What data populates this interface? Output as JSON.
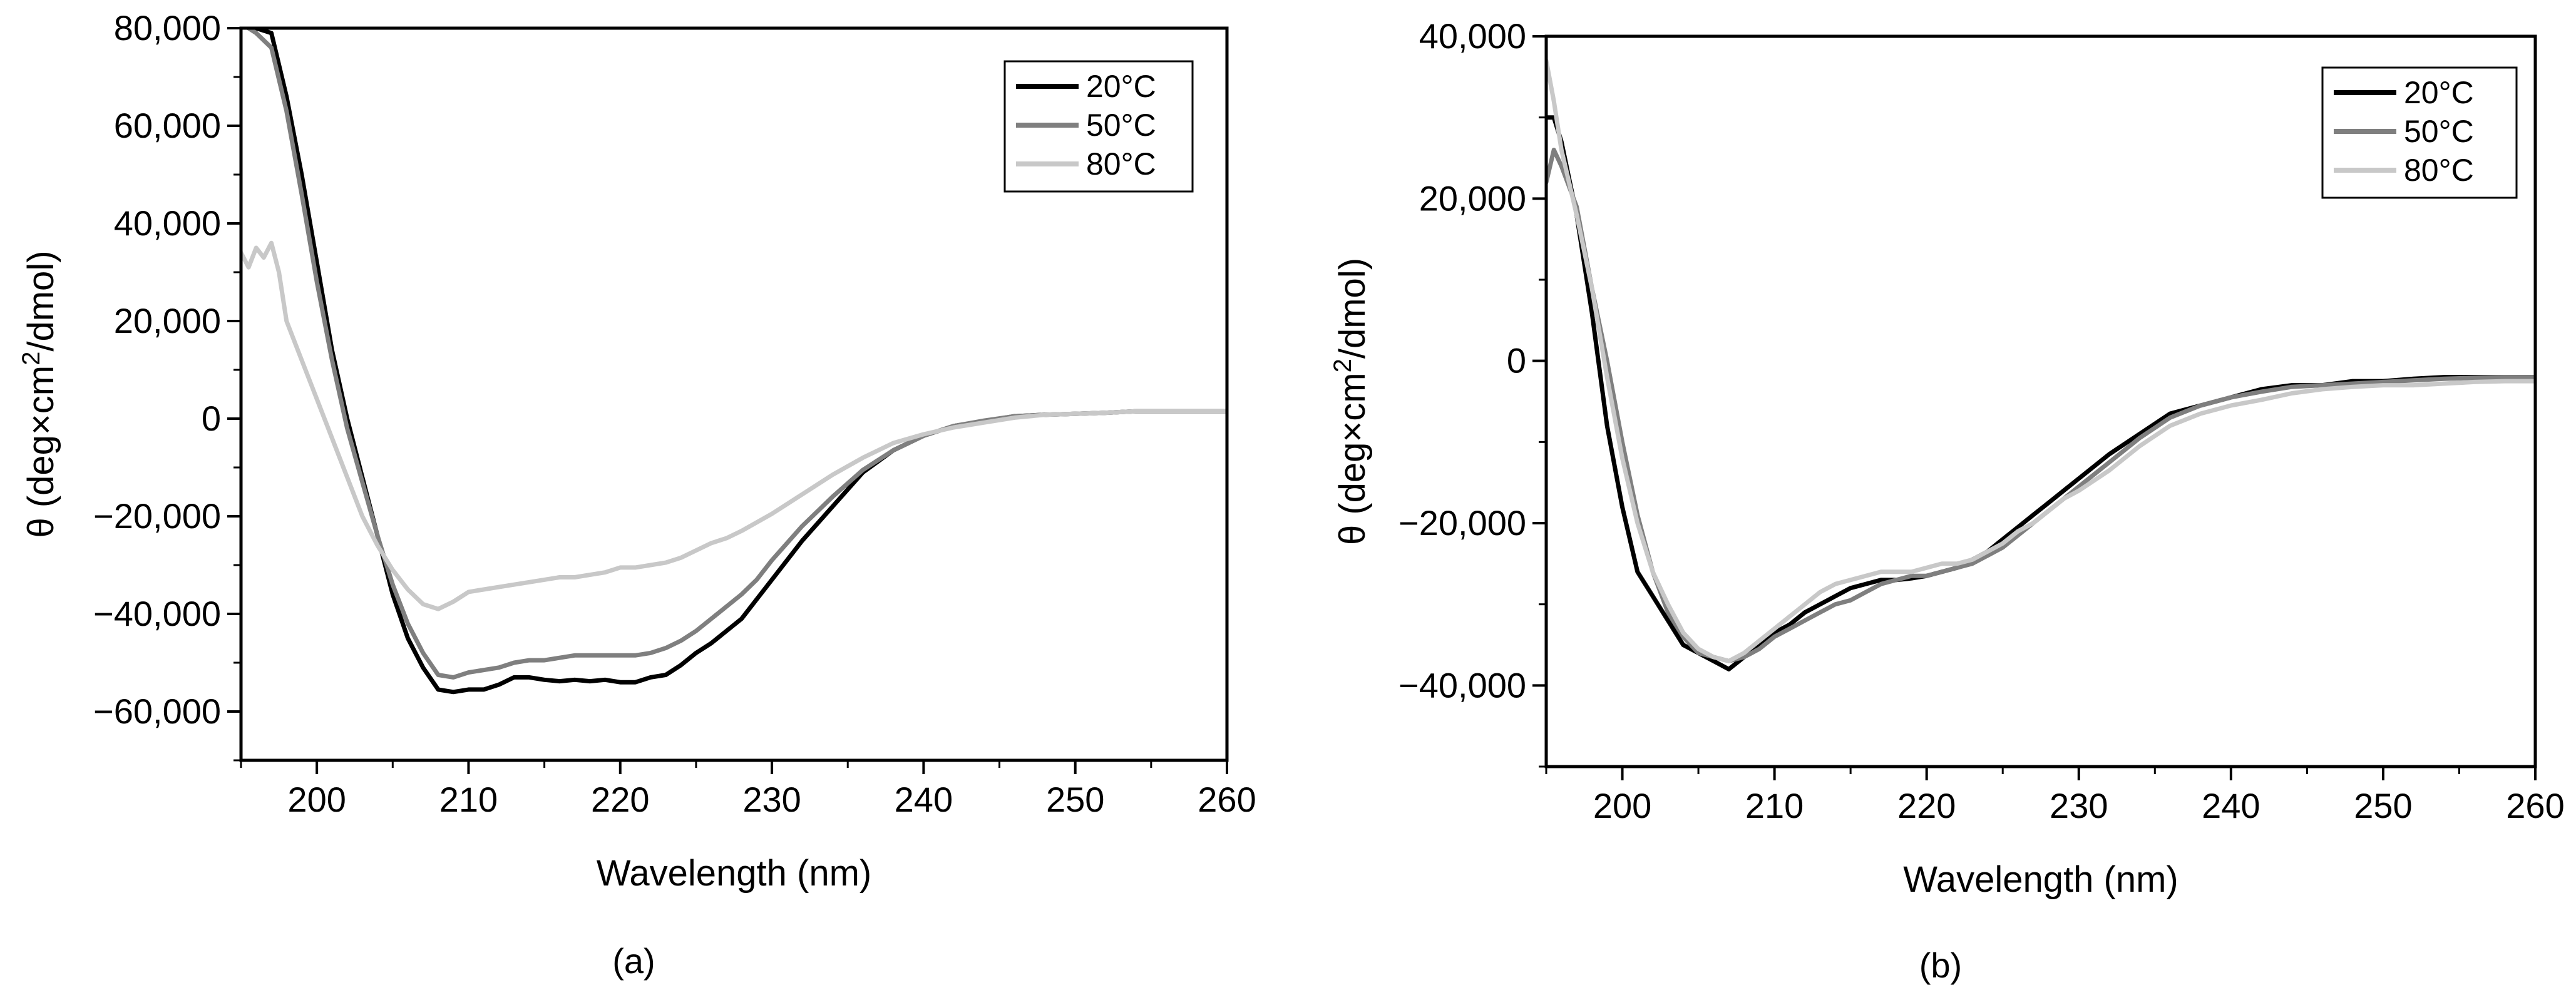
{
  "chart_data": [
    {
      "type": "line",
      "panel_label": "(a)",
      "xlabel": "Wavelength (nm)",
      "ylabel_main": "θ (deg×cm",
      "ylabel_sup": "2",
      "ylabel_tail": "/dmol)",
      "xlim": [
        195,
        260
      ],
      "ylim": [
        -70000,
        80000
      ],
      "x_ticks": [
        200,
        210,
        220,
        230,
        240,
        250,
        260
      ],
      "x_tick_labels": [
        "200",
        "210",
        "220",
        "230",
        "240",
        "250",
        "260"
      ],
      "y_ticks": [
        80000,
        60000,
        40000,
        20000,
        0,
        -20000,
        -40000,
        -60000
      ],
      "y_tick_labels": [
        "80,000",
        "60,000",
        "40,000",
        "20,000",
        "0",
        "−20,000",
        "−40,000",
        "−60,000"
      ],
      "y_minor_ticks": [
        -70000,
        -50000,
        -30000,
        -10000,
        10000,
        30000,
        50000,
        70000
      ],
      "legend": {
        "position": "top-right",
        "entries": [
          "20°C",
          "50°C",
          "80°C"
        ]
      },
      "series": [
        {
          "name": "20°C",
          "color": "#000000",
          "x": [
            195.5,
            196,
            197,
            198,
            199,
            200,
            201,
            202,
            203,
            204,
            205,
            206,
            207,
            208,
            209,
            210,
            211,
            212,
            213,
            214,
            215,
            216,
            217,
            218,
            219,
            220,
            221,
            222,
            223,
            224,
            225,
            226,
            227,
            228,
            229,
            230,
            232,
            234,
            236,
            238,
            240,
            242,
            244,
            246,
            248,
            250,
            252,
            254,
            256,
            258,
            260
          ],
          "y": [
            80000,
            80000,
            79000,
            66000,
            50000,
            32000,
            14000,
            0,
            -12000,
            -24000,
            -36000,
            -45000,
            -51000,
            -55500,
            -56000,
            -55500,
            -55500,
            -54500,
            -53000,
            -53000,
            -53500,
            -53800,
            -53500,
            -53800,
            -53500,
            -54000,
            -54000,
            -53000,
            -52500,
            -50500,
            -48000,
            -46000,
            -43500,
            -41000,
            -37000,
            -33000,
            -25000,
            -18000,
            -11000,
            -6500,
            -3500,
            -1500,
            -500,
            500,
            800,
            1000,
            1200,
            1500,
            1500,
            1500,
            1500
          ]
        },
        {
          "name": "50°C",
          "color": "#7f7f7f",
          "x": [
            195.5,
            196,
            197,
            198,
            199,
            200,
            201,
            202,
            203,
            204,
            205,
            206,
            207,
            208,
            209,
            210,
            211,
            212,
            213,
            214,
            215,
            216,
            217,
            218,
            219,
            220,
            221,
            222,
            223,
            224,
            225,
            226,
            227,
            228,
            229,
            230,
            232,
            234,
            236,
            238,
            240,
            242,
            244,
            246,
            248,
            250,
            252,
            254,
            256,
            258,
            260
          ],
          "y": [
            80000,
            79000,
            76000,
            63000,
            46000,
            28000,
            12000,
            -2000,
            -13000,
            -24000,
            -34000,
            -42000,
            -48000,
            -52500,
            -53000,
            -52000,
            -51500,
            -51000,
            -50000,
            -49500,
            -49500,
            -49000,
            -48500,
            -48500,
            -48500,
            -48500,
            -48500,
            -48000,
            -47000,
            -45500,
            -43500,
            -41000,
            -38500,
            -36000,
            -33000,
            -29000,
            -22000,
            -16000,
            -10500,
            -6500,
            -3500,
            -1500,
            -400,
            500,
            800,
            1000,
            1200,
            1500,
            1500,
            1500,
            1500
          ]
        },
        {
          "name": "80°C",
          "color": "#c8c8c8",
          "x": [
            195,
            195.5,
            196,
            196.5,
            197,
            197.5,
            198,
            199,
            200,
            201,
            202,
            203,
            204,
            205,
            206,
            207,
            208,
            209,
            210,
            211,
            212,
            213,
            214,
            215,
            216,
            217,
            218,
            219,
            220,
            221,
            222,
            223,
            224,
            225,
            226,
            227,
            228,
            230,
            232,
            234,
            236,
            238,
            240,
            242,
            244,
            246,
            248,
            250,
            252,
            254,
            256,
            258,
            260
          ],
          "y": [
            34000,
            31000,
            35000,
            33000,
            36000,
            30000,
            20000,
            12000,
            4000,
            -4000,
            -12000,
            -20000,
            -26000,
            -31000,
            -35000,
            -38000,
            -39000,
            -37500,
            -35500,
            -35000,
            -34500,
            -34000,
            -33500,
            -33000,
            -32500,
            -32500,
            -32000,
            -31500,
            -30500,
            -30500,
            -30000,
            -29500,
            -28500,
            -27000,
            -25500,
            -24500,
            -23000,
            -19500,
            -15500,
            -11500,
            -8000,
            -5000,
            -3200,
            -1800,
            -800,
            200,
            800,
            1000,
            1200,
            1500,
            1500,
            1500,
            1500
          ]
        }
      ]
    },
    {
      "type": "line",
      "panel_label": "(b)",
      "xlabel": "Wavelength (nm)",
      "ylabel_main": "θ (deg×cm",
      "ylabel_sup": "2",
      "ylabel_tail": "/dmol)",
      "xlim": [
        195,
        260
      ],
      "ylim": [
        -50000,
        40000
      ],
      "x_ticks": [
        200,
        210,
        220,
        230,
        240,
        250,
        260
      ],
      "x_tick_labels": [
        "200",
        "210",
        "220",
        "230",
        "240",
        "250",
        "260"
      ],
      "y_ticks": [
        40000,
        20000,
        0,
        -20000,
        -40000
      ],
      "y_tick_labels": [
        "40,000",
        "20,000",
        "0",
        "−20,000",
        "−40,000"
      ],
      "y_minor_ticks": [
        -50000,
        -30000,
        -10000,
        10000,
        30000
      ],
      "legend": {
        "position": "top-right",
        "entries": [
          "20°C",
          "50°C",
          "80°C"
        ]
      },
      "series": [
        {
          "name": "20°C",
          "color": "#000000",
          "x": [
            195,
            195.5,
            196,
            197,
            198,
            199,
            200,
            201,
            202,
            203,
            204,
            205,
            206,
            207,
            208,
            209,
            210,
            211,
            212,
            213,
            214,
            215,
            216,
            217,
            218,
            219,
            220,
            221,
            222,
            223,
            224,
            225,
            226,
            227,
            228,
            229,
            230,
            232,
            234,
            236,
            238,
            240,
            242,
            244,
            246,
            248,
            250,
            252,
            254,
            256,
            258,
            260
          ],
          "y": [
            30000,
            30000,
            27000,
            18000,
            6000,
            -8000,
            -18000,
            -26000,
            -29000,
            -32000,
            -35000,
            -36000,
            -37000,
            -38000,
            -36500,
            -35000,
            -33500,
            -32500,
            -31000,
            -30000,
            -29000,
            -28000,
            -27500,
            -27000,
            -27000,
            -26800,
            -26500,
            -26000,
            -25500,
            -24500,
            -23500,
            -22000,
            -20500,
            -19000,
            -17500,
            -16000,
            -14500,
            -11500,
            -9000,
            -6500,
            -5500,
            -4500,
            -3500,
            -3000,
            -3000,
            -2500,
            -2500,
            -2200,
            -2000,
            -2000,
            -2000,
            -2000
          ]
        },
        {
          "name": "50°C",
          "color": "#7f7f7f",
          "x": [
            195,
            195.5,
            196,
            197,
            198,
            199,
            200,
            201,
            202,
            203,
            204,
            205,
            206,
            207,
            208,
            209,
            210,
            211,
            212,
            213,
            214,
            215,
            216,
            217,
            218,
            219,
            220,
            221,
            222,
            223,
            224,
            225,
            226,
            227,
            228,
            229,
            230,
            232,
            234,
            236,
            238,
            240,
            242,
            244,
            246,
            248,
            250,
            252,
            254,
            256,
            258,
            260
          ],
          "y": [
            22000,
            26000,
            24000,
            19000,
            9000,
            0,
            -10000,
            -19000,
            -26000,
            -31000,
            -34000,
            -36000,
            -36500,
            -37000,
            -36500,
            -35500,
            -34000,
            -33000,
            -32000,
            -31000,
            -30000,
            -29500,
            -28500,
            -27500,
            -27000,
            -26500,
            -26500,
            -26000,
            -25500,
            -25000,
            -24000,
            -23000,
            -21500,
            -20000,
            -18500,
            -17000,
            -15500,
            -12500,
            -9500,
            -7000,
            -5500,
            -4500,
            -3800,
            -3200,
            -3000,
            -2800,
            -2600,
            -2400,
            -2200,
            -2100,
            -2000,
            -2000
          ]
        },
        {
          "name": "80°C",
          "color": "#c8c8c8",
          "x": [
            195,
            195.5,
            196,
            197,
            198,
            199,
            200,
            201,
            202,
            203,
            204,
            205,
            206,
            207,
            208,
            209,
            210,
            211,
            212,
            213,
            214,
            215,
            216,
            217,
            218,
            219,
            220,
            221,
            222,
            223,
            224,
            225,
            226,
            227,
            228,
            229,
            230,
            232,
            234,
            236,
            238,
            240,
            242,
            244,
            246,
            248,
            250,
            252,
            254,
            256,
            258,
            260
          ],
          "y": [
            37000,
            32000,
            26000,
            18000,
            9000,
            -2000,
            -12000,
            -20000,
            -26000,
            -30000,
            -33500,
            -35500,
            -36500,
            -37000,
            -36000,
            -34500,
            -33000,
            -31500,
            -30000,
            -28500,
            -27500,
            -27000,
            -26500,
            -26000,
            -26000,
            -26000,
            -25500,
            -25000,
            -25000,
            -24500,
            -23500,
            -22500,
            -21000,
            -20000,
            -18500,
            -17000,
            -16000,
            -13500,
            -10500,
            -8000,
            -6500,
            -5500,
            -4800,
            -4000,
            -3500,
            -3200,
            -3000,
            -3000,
            -2800,
            -2600,
            -2500,
            -2500
          ]
        }
      ]
    }
  ]
}
